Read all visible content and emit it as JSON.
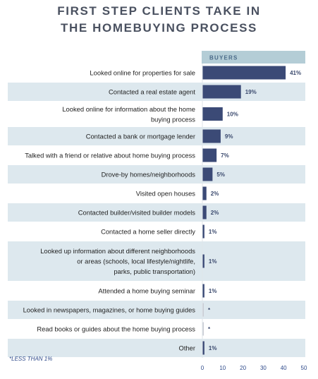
{
  "title_lines": [
    "FIRST STEP CLIENTS TAKE IN",
    "THE HOMEBUYING PROCESS"
  ],
  "footnote": "*LESS THAN 1%",
  "colors": {
    "bar": "#3b4a76",
    "bar_tiny": "#c9ccd4",
    "band": "#dde8ee",
    "header_bg": "#b4cdd6",
    "header_text": "#4a6a88",
    "title": "#4a5160"
  },
  "chart_data": {
    "type": "bar",
    "orientation": "horizontal",
    "series": [
      {
        "name": "BUYERS"
      }
    ],
    "categories": [
      [
        "Looked online for properties for sale"
      ],
      [
        "Contacted a real estate agent"
      ],
      [
        "Looked online for information about the home",
        "buying process"
      ],
      [
        "Contacted a bank or mortgage lender"
      ],
      [
        "Talked with a friend or relative about home buying process"
      ],
      [
        "Drove-by homes/neighborhoods"
      ],
      [
        "Visited open houses"
      ],
      [
        "Contacted builder/visited builder models"
      ],
      [
        "Contacted a home seller directly"
      ],
      [
        "Looked up information about different neighborhoods",
        "or areas (schools, local lifestyle/nightlife,",
        "parks,  public transportation)"
      ],
      [
        "Attended a home buying seminar"
      ],
      [
        "Looked in newspapers, magazines, or home buying guides"
      ],
      [
        "Read books or guides about the home buying process"
      ],
      [
        "Other"
      ]
    ],
    "values": [
      41,
      19,
      10,
      9,
      7,
      5,
      2,
      2,
      1,
      1,
      1,
      0.3,
      0.3,
      1
    ],
    "data_labels": [
      "41%",
      "19%",
      "10%",
      "9%",
      "7%",
      "5%",
      "2%",
      "2%",
      "1%",
      "1%",
      "1%",
      "*",
      "*",
      "1%"
    ],
    "xlim": [
      0,
      50
    ],
    "xticks": [
      0,
      10,
      20,
      30,
      40,
      50
    ],
    "grid": false,
    "legend": "top"
  }
}
